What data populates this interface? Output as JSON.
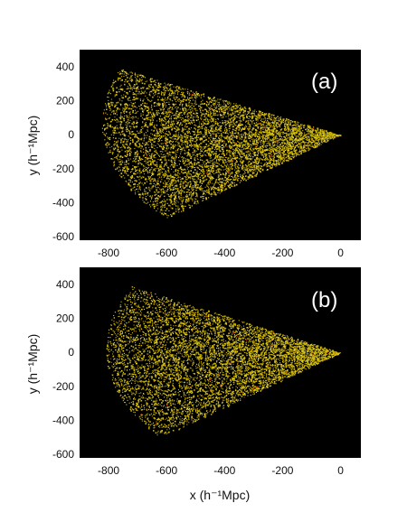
{
  "chart_data": [
    {
      "type": "scatter",
      "panel_label": "(a)",
      "xlabel": "x (h⁻¹Mpc)",
      "ylabel": "y (h⁻¹Mpc)",
      "xlim": [
        -900,
        70
      ],
      "ylim": [
        -620,
        500
      ],
      "xticks": [
        -800,
        -600,
        -400,
        -200,
        0
      ],
      "yticks": [
        400,
        200,
        0,
        -200,
        -400,
        -600
      ],
      "background_color": "#000000",
      "point_colors": [
        "#c8b400",
        "#e6d22a",
        "#b89a00",
        "#c24a14"
      ],
      "series": [
        {
          "description_values": "galaxy positions in a wedge-shaped survey slice with apex at (0,0)",
          "wedge_apex": [
            0,
            0
          ],
          "wedge_upper_edge": [
            [
              0,
              0
            ],
            [
              -760,
              390
            ]
          ],
          "wedge_lower_edge": [
            [
              0,
              0
            ],
            [
              -600,
              -490
            ]
          ],
          "approx_point_count": 6500,
          "density": "highest near apex, decreasing with distance"
        }
      ]
    },
    {
      "type": "scatter",
      "panel_label": "(b)",
      "xlabel": "x (h⁻¹Mpc)",
      "ylabel": "y (h⁻¹Mpc)",
      "xlim": [
        -900,
        70
      ],
      "ylim": [
        -620,
        500
      ],
      "xticks": [
        -800,
        -600,
        -400,
        -200,
        0
      ],
      "yticks": [
        400,
        200,
        0,
        -200,
        -400,
        -600
      ],
      "background_color": "#000000",
      "point_colors": [
        "#c8b400",
        "#e6d22a",
        "#b89a00",
        "#c24a14"
      ],
      "series": [
        {
          "description_values": "galaxy positions in a wedge-shaped survey slice with apex at (0,0)",
          "wedge_apex": [
            0,
            0
          ],
          "wedge_upper_edge": [
            [
              0,
              0
            ],
            [
              -720,
              390
            ]
          ],
          "wedge_lower_edge": [
            [
              0,
              0
            ],
            [
              -620,
              -500
            ]
          ],
          "approx_point_count": 6500,
          "density": "highest near apex, decreasing with distance"
        }
      ]
    }
  ]
}
